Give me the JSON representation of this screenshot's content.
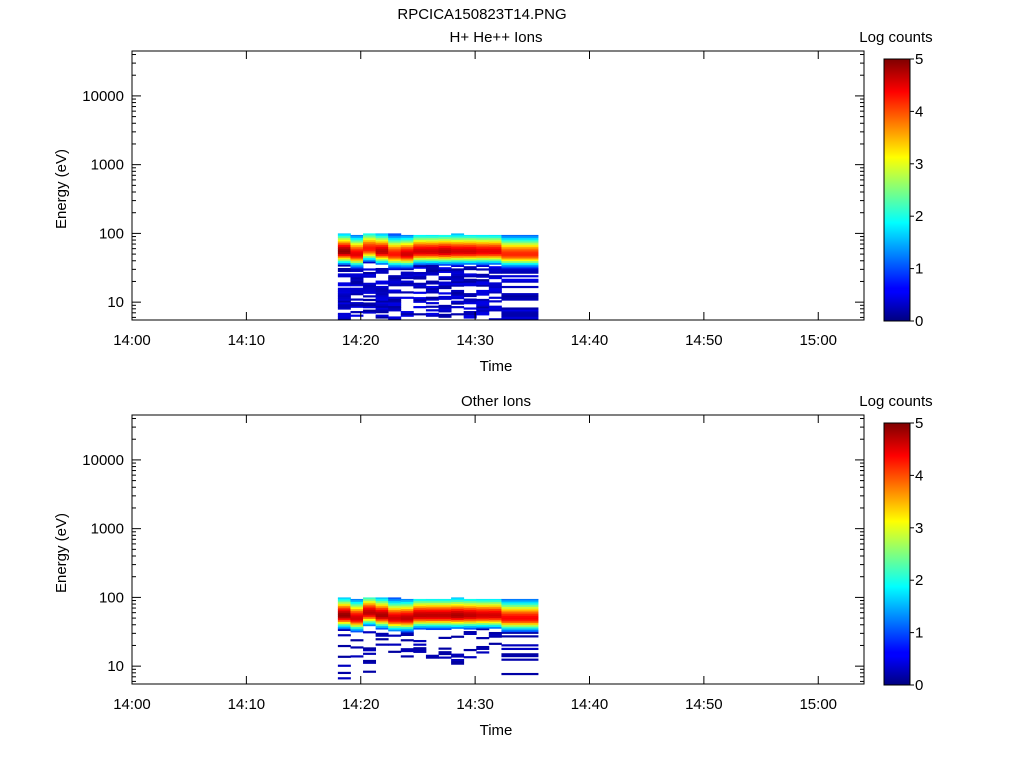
{
  "page": {
    "title": "RPCICA150823T14.PNG"
  },
  "chart_data": [
    {
      "type": "heatmap",
      "title": "H+ He++ Ions",
      "xlabel": "Time",
      "ylabel": "Energy (eV)",
      "x_ticks": [
        "14:00",
        "14:10",
        "14:20",
        "14:30",
        "14:40",
        "14:50",
        "15:00"
      ],
      "x_range_minutes": [
        0,
        64
      ],
      "y_scale": "log",
      "y_ticks": [
        "10",
        "100",
        "1000",
        "10000"
      ],
      "y_range": [
        5.5,
        45000
      ],
      "colorbar": {
        "label": "Log counts",
        "range": [
          0,
          5
        ],
        "ticks": [
          "0",
          "1",
          "2",
          "3",
          "4",
          "5"
        ],
        "colormap": "jet"
      },
      "data_extent": {
        "time_start": "14:18",
        "time_end": "14:35.5",
        "energy_min": 5.5,
        "energy_max": 100
      },
      "columns": [
        {
          "t": 18.0,
          "w": 1.1,
          "top": 100,
          "peak_e": 55,
          "peak": 4.9,
          "low_cut": 5.5
        },
        {
          "t": 19.1,
          "w": 1.1,
          "top": 95,
          "peak_e": 50,
          "peak": 4.5,
          "low_cut": 5.5
        },
        {
          "t": 20.2,
          "w": 1.1,
          "top": 100,
          "peak_e": 60,
          "peak": 4.3,
          "low_cut": 6.5
        },
        {
          "t": 21.3,
          "w": 1.1,
          "top": 100,
          "peak_e": 55,
          "peak": 4.7,
          "low_cut": 5.5
        },
        {
          "t": 22.4,
          "w": 1.1,
          "top": 100,
          "peak_e": 50,
          "peak": 4.3,
          "low_cut": 5.5
        },
        {
          "t": 23.5,
          "w": 1.1,
          "top": 95,
          "peak_e": 50,
          "peak": 4.6,
          "low_cut": 5.5
        },
        {
          "t": 24.6,
          "w": 1.1,
          "top": 95,
          "peak_e": 55,
          "peak": 4.6,
          "low_cut": 6.5
        },
        {
          "t": 25.7,
          "w": 1.1,
          "top": 95,
          "peak_e": 55,
          "peak": 4.6,
          "low_cut": 5.5
        },
        {
          "t": 26.8,
          "w": 1.1,
          "top": 95,
          "peak_e": 55,
          "peak": 4.7,
          "low_cut": 6.0
        },
        {
          "t": 27.9,
          "w": 1.1,
          "top": 100,
          "peak_e": 55,
          "peak": 4.6,
          "low_cut": 6.5
        },
        {
          "t": 29.0,
          "w": 1.1,
          "top": 95,
          "peak_e": 55,
          "peak": 4.6,
          "low_cut": 5.5
        },
        {
          "t": 30.1,
          "w": 1.1,
          "top": 95,
          "peak_e": 55,
          "peak": 4.5,
          "low_cut": 6.5
        },
        {
          "t": 31.2,
          "w": 1.1,
          "top": 95,
          "peak_e": 55,
          "peak": 4.5,
          "low_cut": 5.5
        },
        {
          "t": 32.3,
          "w": 3.2,
          "top": 95,
          "peak_e": 50,
          "peak": 4.2,
          "low_cut": 5.5
        }
      ]
    },
    {
      "type": "heatmap",
      "title": "Other Ions",
      "xlabel": "Time",
      "ylabel": "Energy (eV)",
      "x_ticks": [
        "14:00",
        "14:10",
        "14:20",
        "14:30",
        "14:40",
        "14:50",
        "15:00"
      ],
      "x_range_minutes": [
        0,
        64
      ],
      "y_scale": "log",
      "y_ticks": [
        "10",
        "100",
        "1000",
        "10000"
      ],
      "y_range": [
        5.5,
        45000
      ],
      "colorbar": {
        "label": "Log counts",
        "range": [
          0,
          5
        ],
        "ticks": [
          "0",
          "1",
          "2",
          "3",
          "4",
          "5"
        ],
        "colormap": "jet"
      },
      "data_extent": {
        "time_start": "14:18",
        "time_end": "14:35.5",
        "energy_min": 5.5,
        "energy_max": 100
      },
      "columns": [
        {
          "t": 18.0,
          "w": 1.1,
          "top": 100,
          "peak_e": 55,
          "peak": 4.9,
          "low_cut": 6.5
        },
        {
          "t": 19.1,
          "w": 1.1,
          "top": 95,
          "peak_e": 50,
          "peak": 4.6,
          "low_cut": 12
        },
        {
          "t": 20.2,
          "w": 1.1,
          "top": 100,
          "peak_e": 60,
          "peak": 4.7,
          "low_cut": 6.0
        },
        {
          "t": 21.3,
          "w": 1.1,
          "top": 100,
          "peak_e": 55,
          "peak": 4.8,
          "low_cut": 14
        },
        {
          "t": 22.4,
          "w": 1.1,
          "top": 100,
          "peak_e": 50,
          "peak": 4.6,
          "low_cut": 14
        },
        {
          "t": 23.5,
          "w": 1.1,
          "top": 95,
          "peak_e": 50,
          "peak": 4.7,
          "low_cut": 12
        },
        {
          "t": 24.6,
          "w": 1.1,
          "top": 95,
          "peak_e": 55,
          "peak": 4.7,
          "low_cut": 11
        },
        {
          "t": 25.7,
          "w": 1.1,
          "top": 95,
          "peak_e": 55,
          "peak": 4.7,
          "low_cut": 13
        },
        {
          "t": 26.8,
          "w": 1.1,
          "top": 95,
          "peak_e": 55,
          "peak": 4.7,
          "low_cut": 13
        },
        {
          "t": 27.9,
          "w": 1.1,
          "top": 100,
          "peak_e": 55,
          "peak": 4.8,
          "low_cut": 10
        },
        {
          "t": 29.0,
          "w": 1.1,
          "top": 95,
          "peak_e": 55,
          "peak": 4.7,
          "low_cut": 11
        },
        {
          "t": 30.1,
          "w": 1.1,
          "top": 95,
          "peak_e": 55,
          "peak": 4.6,
          "low_cut": 9
        },
        {
          "t": 31.2,
          "w": 1.1,
          "top": 95,
          "peak_e": 55,
          "peak": 4.6,
          "low_cut": 7
        },
        {
          "t": 32.3,
          "w": 3.2,
          "top": 95,
          "peak_e": 50,
          "peak": 4.4,
          "low_cut": 7.5
        }
      ]
    }
  ]
}
